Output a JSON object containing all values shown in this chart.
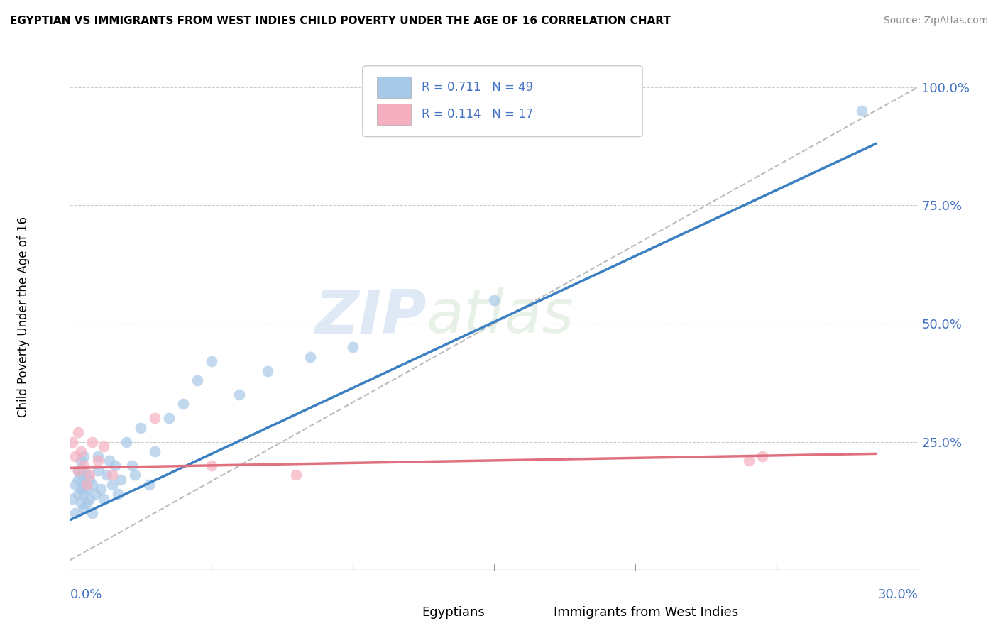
{
  "title": "EGYPTIAN VS IMMIGRANTS FROM WEST INDIES CHILD POVERTY UNDER THE AGE OF 16 CORRELATION CHART",
  "source": "Source: ZipAtlas.com",
  "ylabel": "Child Poverty Under the Age of 16",
  "watermark_zip": "ZIP",
  "watermark_atlas": "atlas",
  "legend_label1": "Egyptians",
  "legend_label2": "Immigrants from West Indies",
  "r1": 0.711,
  "n1": 49,
  "r2": 0.114,
  "n2": 17,
  "color1": "#a8c8e8",
  "color2": "#f4b0c0",
  "line_color1": "#3a7fc1",
  "line_color2": "#e07080",
  "ref_line_color": "#bbbbbb",
  "xlim": [
    0.0,
    0.3
  ],
  "ylim": [
    -0.02,
    1.05
  ],
  "egyptians_x": [
    0.001,
    0.002,
    0.002,
    0.003,
    0.003,
    0.003,
    0.004,
    0.004,
    0.004,
    0.004,
    0.005,
    0.005,
    0.005,
    0.005,
    0.005,
    0.006,
    0.006,
    0.006,
    0.007,
    0.007,
    0.008,
    0.008,
    0.009,
    0.01,
    0.01,
    0.011,
    0.012,
    0.013,
    0.014,
    0.015,
    0.016,
    0.017,
    0.018,
    0.02,
    0.022,
    0.023,
    0.025,
    0.028,
    0.03,
    0.035,
    0.04,
    0.045,
    0.05,
    0.06,
    0.07,
    0.085,
    0.1,
    0.15,
    0.28
  ],
  "egyptians_y": [
    0.13,
    0.1,
    0.16,
    0.14,
    0.17,
    0.19,
    0.12,
    0.15,
    0.18,
    0.21,
    0.11,
    0.14,
    0.16,
    0.19,
    0.22,
    0.12,
    0.15,
    0.18,
    0.13,
    0.17,
    0.1,
    0.16,
    0.14,
    0.19,
    0.22,
    0.15,
    0.13,
    0.18,
    0.21,
    0.16,
    0.2,
    0.14,
    0.17,
    0.25,
    0.2,
    0.18,
    0.28,
    0.16,
    0.23,
    0.3,
    0.33,
    0.38,
    0.42,
    0.35,
    0.4,
    0.43,
    0.45,
    0.55,
    0.95
  ],
  "westindies_x": [
    0.001,
    0.002,
    0.003,
    0.003,
    0.004,
    0.005,
    0.006,
    0.007,
    0.008,
    0.01,
    0.012,
    0.015,
    0.03,
    0.05,
    0.08,
    0.24,
    0.245
  ],
  "westindies_y": [
    0.25,
    0.22,
    0.19,
    0.27,
    0.23,
    0.2,
    0.16,
    0.18,
    0.25,
    0.21,
    0.24,
    0.18,
    0.3,
    0.2,
    0.18,
    0.21,
    0.22
  ],
  "reg_line1_x0": 0.0,
  "reg_line1_y0": 0.085,
  "reg_line1_x1": 0.285,
  "reg_line1_y1": 0.88,
  "reg_line2_x0": 0.0,
  "reg_line2_y0": 0.195,
  "reg_line2_x1": 0.285,
  "reg_line2_y1": 0.225,
  "ref_line_x0": 0.0,
  "ref_line_y0": 0.0,
  "ref_line_x1": 0.3,
  "ref_line_y1": 1.0
}
